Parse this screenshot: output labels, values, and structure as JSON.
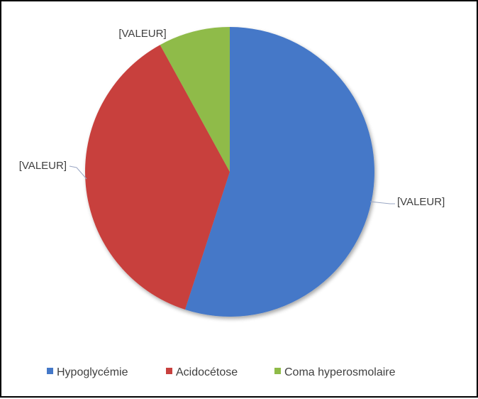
{
  "chart_data": {
    "type": "pie",
    "title": "",
    "categories": [
      "Hypoglycémie",
      "Acidocétose",
      "Coma hyperosmolaire"
    ],
    "values": [
      55,
      37,
      8
    ],
    "data_labels": [
      "[VALEUR]",
      "[VALEUR]",
      "[VALEUR]"
    ],
    "colors": [
      "#4478c8",
      "#c8403e",
      "#8fbb48"
    ],
    "start_angle_deg": 0,
    "direction": "clockwise",
    "legend": "bottom"
  }
}
